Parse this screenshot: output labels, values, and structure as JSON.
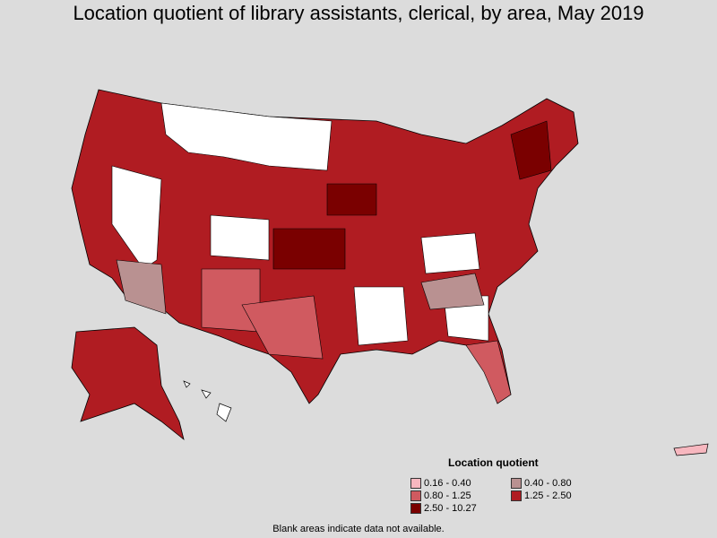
{
  "title": "Location quotient of library assistants, clerical, by area, May 2019",
  "legend": {
    "title": "Location quotient",
    "items": [
      {
        "label": "0.16 - 0.40",
        "color": "#f7b7bf"
      },
      {
        "label": "0.40 - 0.80",
        "color": "#b99191"
      },
      {
        "label": "0.80 - 1.25",
        "color": "#d05a60"
      },
      {
        "label": "1.25 - 2.50",
        "color": "#b01c22"
      },
      {
        "label": "2.50 - 10.27",
        "color": "#7a0000"
      }
    ]
  },
  "footnote": "Blank areas indicate data not available.",
  "colors": {
    "background": "#dcdcdc",
    "no_data": "#ffffff",
    "border": "#000000"
  }
}
